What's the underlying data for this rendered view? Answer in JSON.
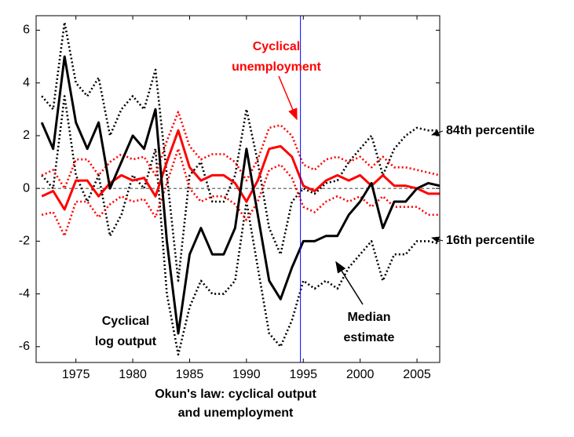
{
  "chart_data": {
    "type": "line",
    "xlabel": [
      "Okun's law: cyclical output",
      "and unemployment"
    ],
    "x": [
      1972,
      1973,
      1974,
      1975,
      1976,
      1977,
      1978,
      1979,
      1980,
      1981,
      1982,
      1983,
      1984,
      1985,
      1986,
      1987,
      1988,
      1989,
      1990,
      1991,
      1992,
      1993,
      1994,
      1995,
      1996,
      1997,
      1998,
      1999,
      2000,
      2001,
      2002,
      2003,
      2004,
      2005,
      2006,
      2007
    ],
    "series": [
      {
        "color": "#000000",
        "style": "dotted",
        "values": [
          3.5,
          3.0,
          6.3,
          4.0,
          3.5,
          4.2,
          2.0,
          3.0,
          3.5,
          3.0,
          4.5,
          0.5,
          -3.5,
          0.5,
          1.0,
          -0.5,
          -0.5,
          0.5,
          3.0,
          1.0,
          -1.5,
          -2.5,
          -0.5,
          0.0,
          -0.2,
          0.2,
          0.3,
          1.0,
          1.5,
          2.0,
          0.5,
          1.5,
          2.0,
          2.3,
          2.2,
          2.2
        ]
      },
      {
        "color": "#000000",
        "style": "dotted",
        "values": [
          0.5,
          0.0,
          3.5,
          0.5,
          -0.5,
          0.5,
          -1.8,
          -1.0,
          0.5,
          0.0,
          1.5,
          -4.0,
          -6.3,
          -4.5,
          -3.5,
          -4.0,
          -4.0,
          -3.5,
          -0.5,
          -3.0,
          -5.5,
          -6.0,
          -5.0,
          -3.5,
          -3.8,
          -3.5,
          -3.8,
          -3.0,
          -2.5,
          -2.0,
          -3.5,
          -2.5,
          -2.5,
          -2.0,
          -2.0,
          -2.1
        ]
      },
      {
        "color": "#ff0000",
        "style": "dotted",
        "values": [
          0.5,
          0.7,
          0.0,
          1.1,
          1.1,
          0.5,
          1.0,
          1.3,
          1.1,
          1.2,
          0.5,
          1.8,
          2.9,
          1.6,
          1.1,
          1.3,
          1.3,
          1.0,
          0.3,
          1.1,
          2.3,
          2.4,
          2.0,
          0.9,
          0.7,
          1.1,
          1.2,
          1.0,
          1.2,
          0.8,
          1.2,
          0.8,
          0.8,
          0.7,
          0.6,
          0.5
        ]
      },
      {
        "color": "#ff0000",
        "style": "dotted",
        "values": [
          -1.0,
          -0.9,
          -1.8,
          -0.5,
          -0.5,
          -1.1,
          -0.6,
          -0.3,
          -0.5,
          -0.4,
          -1.1,
          0.2,
          1.5,
          0.0,
          -0.5,
          -0.3,
          -0.3,
          -0.6,
          -1.2,
          -0.5,
          0.7,
          0.9,
          0.4,
          -0.7,
          -0.9,
          -0.5,
          -0.3,
          -0.5,
          -0.3,
          -0.7,
          -0.3,
          -0.7,
          -0.7,
          -0.7,
          -1.0,
          -1.0
        ]
      },
      {
        "color": "#ff0000",
        "style": "solid",
        "values": [
          -0.3,
          -0.1,
          -0.8,
          0.3,
          0.3,
          -0.3,
          0.2,
          0.5,
          0.3,
          0.4,
          -0.3,
          1.0,
          2.2,
          0.8,
          0.3,
          0.5,
          0.5,
          0.2,
          -0.5,
          0.3,
          1.5,
          1.6,
          1.2,
          0.1,
          -0.1,
          0.3,
          0.5,
          0.3,
          0.5,
          0.1,
          0.5,
          0.1,
          0.1,
          0.0,
          -0.2,
          -0.2
        ]
      },
      {
        "color": "#000000",
        "style": "solid",
        "values": [
          2.5,
          1.5,
          5.0,
          2.5,
          1.5,
          2.5,
          0.0,
          1.0,
          2.0,
          1.5,
          3.0,
          -2.0,
          -5.5,
          -2.5,
          -1.5,
          -2.5,
          -2.5,
          -1.5,
          1.5,
          -1.0,
          -3.5,
          -4.2,
          -3.0,
          -2.0,
          -2.0,
          -1.8,
          -1.8,
          -1.0,
          -0.5,
          0.2,
          -1.5,
          -0.5,
          -0.5,
          0.0,
          0.2,
          0.1
        ]
      }
    ],
    "xlim": [
      1971.5,
      2007
    ],
    "ylim": [
      -6.6,
      6.55
    ],
    "xticks": [
      1975,
      1980,
      1985,
      1990,
      1995,
      2000,
      2005
    ],
    "yticks": [
      -6,
      -4,
      -2,
      0,
      2,
      4,
      6
    ],
    "zero_line": true,
    "vline": {
      "value": 1994.75,
      "color": "#0000ff"
    },
    "annotations": [
      {
        "text": [
          "Cyclical",
          "unemployment"
        ],
        "color": "#ff0000"
      },
      {
        "text": [
          "84th percentile"
        ],
        "color": "#000000"
      },
      {
        "text": [
          "16th percentile"
        ],
        "color": "#000000"
      },
      {
        "text": [
          "Cyclical",
          "log output"
        ],
        "color": "#000000"
      },
      {
        "text": [
          "Median",
          "estimate"
        ],
        "color": "#000000"
      }
    ]
  }
}
